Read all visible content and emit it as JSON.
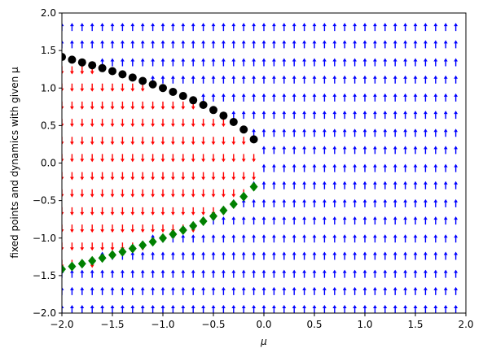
{
  "chart_data": {
    "type": "quiver",
    "xlabel": "μ",
    "ylabel": "fixed points and dynamics with given μ",
    "xlim": [
      -2,
      2
    ],
    "ylim": [
      -2,
      2
    ],
    "xticks": [
      {
        "value": -2,
        "label": "−2.0"
      },
      {
        "value": -1.5,
        "label": "−1.5"
      },
      {
        "value": -1,
        "label": "−1.0"
      },
      {
        "value": -0.5,
        "label": "−0.5"
      },
      {
        "value": 0,
        "label": "0.0"
      },
      {
        "value": 0.5,
        "label": "0.5"
      },
      {
        "value": 1,
        "label": "1.0"
      },
      {
        "value": 1.5,
        "label": "1.5"
      },
      {
        "value": 2,
        "label": "2.0"
      }
    ],
    "yticks": [
      {
        "value": -2,
        "label": "−2.0"
      },
      {
        "value": -1.5,
        "label": "−1.5"
      },
      {
        "value": -1,
        "label": "−1.0"
      },
      {
        "value": -0.5,
        "label": "−0.5"
      },
      {
        "value": 0,
        "label": "0.0"
      },
      {
        "value": 0.5,
        "label": "0.5"
      },
      {
        "value": 1,
        "label": "1.0"
      },
      {
        "value": 1.5,
        "label": "1.5"
      },
      {
        "value": 2,
        "label": "2.0"
      }
    ],
    "quiver": {
      "up_color": "#0000ff",
      "down_color": "#ff0000",
      "mu": [
        -2,
        -1.9,
        -1.8,
        -1.7,
        -1.6,
        -1.5,
        -1.4,
        -1.3,
        -1.2,
        -1.1,
        -1,
        -0.9,
        -0.8,
        -0.7,
        -0.6,
        -0.5,
        -0.4,
        -0.3,
        -0.2,
        -0.1,
        0,
        0.1,
        0.2,
        0.3,
        0.4,
        0.5,
        0.6,
        0.7,
        0.8,
        0.9,
        1,
        1.1,
        1.2,
        1.3,
        1.4,
        1.5,
        1.6,
        1.7,
        1.8,
        1.9
      ],
      "x": [
        -2,
        -1.76,
        -1.53,
        -1.29,
        -1.06,
        -0.82,
        -0.59,
        -0.35,
        -0.12,
        0.12,
        0.35,
        0.59,
        0.82,
        1.06,
        1.29,
        1.53,
        1.76,
        2
      ],
      "directions": [
        [
          1,
          1,
          1,
          1,
          1,
          1,
          1,
          1,
          1,
          1,
          1,
          1,
          1,
          1,
          1,
          1,
          1,
          1,
          1,
          1,
          1,
          1,
          1,
          1,
          1,
          1,
          1,
          1,
          1,
          1,
          1,
          1,
          1,
          1,
          1,
          1,
          1,
          1,
          1,
          1
        ],
        [
          1,
          1,
          1,
          1,
          1,
          1,
          1,
          1,
          1,
          1,
          1,
          1,
          1,
          1,
          1,
          1,
          1,
          1,
          1,
          1,
          1,
          1,
          1,
          1,
          1,
          1,
          1,
          1,
          1,
          1,
          1,
          1,
          1,
          1,
          1,
          1,
          1,
          1,
          1,
          1
        ],
        [
          1,
          1,
          1,
          1,
          1,
          1,
          1,
          1,
          1,
          1,
          1,
          1,
          1,
          1,
          1,
          1,
          1,
          1,
          1,
          1,
          1,
          1,
          1,
          1,
          1,
          1,
          1,
          1,
          1,
          1,
          1,
          1,
          1,
          1,
          1,
          1,
          1,
          1,
          1,
          1
        ],
        [
          -1,
          -1,
          -1,
          -1,
          1,
          1,
          1,
          1,
          1,
          1,
          1,
          1,
          1,
          1,
          1,
          1,
          1,
          1,
          1,
          1,
          1,
          1,
          1,
          1,
          1,
          1,
          1,
          1,
          1,
          1,
          1,
          1,
          1,
          1,
          1,
          1,
          1,
          1,
          1,
          1
        ],
        [
          -1,
          -1,
          -1,
          -1,
          -1,
          -1,
          -1,
          -1,
          -1,
          1,
          1,
          1,
          1,
          1,
          1,
          1,
          1,
          1,
          1,
          1,
          1,
          1,
          1,
          1,
          1,
          1,
          1,
          1,
          1,
          1,
          1,
          1,
          1,
          1,
          1,
          1,
          1,
          1,
          1,
          1
        ],
        [
          -1,
          -1,
          -1,
          -1,
          -1,
          -1,
          -1,
          -1,
          -1,
          -1,
          -1,
          -1,
          -1,
          -1,
          1,
          1,
          1,
          1,
          1,
          1,
          1,
          1,
          1,
          1,
          1,
          1,
          1,
          1,
          1,
          1,
          1,
          1,
          1,
          1,
          1,
          1,
          1,
          1,
          1,
          1
        ],
        [
          -1,
          -1,
          -1,
          -1,
          -1,
          -1,
          -1,
          -1,
          -1,
          -1,
          -1,
          -1,
          -1,
          -1,
          -1,
          -1,
          -1,
          1,
          1,
          1,
          1,
          1,
          1,
          1,
          1,
          1,
          1,
          1,
          1,
          1,
          1,
          1,
          1,
          1,
          1,
          1,
          1,
          1,
          1,
          1
        ],
        [
          -1,
          -1,
          -1,
          -1,
          -1,
          -1,
          -1,
          -1,
          -1,
          -1,
          -1,
          -1,
          -1,
          -1,
          -1,
          -1,
          -1,
          -1,
          -1,
          1,
          1,
          1,
          1,
          1,
          1,
          1,
          1,
          1,
          1,
          1,
          1,
          1,
          1,
          1,
          1,
          1,
          1,
          1,
          1,
          1
        ],
        [
          -1,
          -1,
          -1,
          -1,
          -1,
          -1,
          -1,
          -1,
          -1,
          -1,
          -1,
          -1,
          -1,
          -1,
          -1,
          -1,
          -1,
          -1,
          -1,
          -1,
          1,
          1,
          1,
          1,
          1,
          1,
          1,
          1,
          1,
          1,
          1,
          1,
          1,
          1,
          1,
          1,
          1,
          1,
          1,
          1
        ],
        [
          -1,
          -1,
          -1,
          -1,
          -1,
          -1,
          -1,
          -1,
          -1,
          -1,
          -1,
          -1,
          -1,
          -1,
          -1,
          -1,
          -1,
          -1,
          -1,
          -1,
          1,
          1,
          1,
          1,
          1,
          1,
          1,
          1,
          1,
          1,
          1,
          1,
          1,
          1,
          1,
          1,
          1,
          1,
          1,
          1
        ],
        [
          -1,
          -1,
          -1,
          -1,
          -1,
          -1,
          -1,
          -1,
          -1,
          -1,
          -1,
          -1,
          -1,
          -1,
          -1,
          -1,
          -1,
          -1,
          -1,
          1,
          1,
          1,
          1,
          1,
          1,
          1,
          1,
          1,
          1,
          1,
          1,
          1,
          1,
          1,
          1,
          1,
          1,
          1,
          1,
          1
        ],
        [
          -1,
          -1,
          -1,
          -1,
          -1,
          -1,
          -1,
          -1,
          -1,
          -1,
          -1,
          -1,
          -1,
          -1,
          -1,
          -1,
          -1,
          1,
          1,
          1,
          1,
          1,
          1,
          1,
          1,
          1,
          1,
          1,
          1,
          1,
          1,
          1,
          1,
          1,
          1,
          1,
          1,
          1,
          1,
          1
        ],
        [
          -1,
          -1,
          -1,
          -1,
          -1,
          -1,
          -1,
          -1,
          -1,
          -1,
          -1,
          -1,
          -1,
          -1,
          1,
          1,
          1,
          1,
          1,
          1,
          1,
          1,
          1,
          1,
          1,
          1,
          1,
          1,
          1,
          1,
          1,
          1,
          1,
          1,
          1,
          1,
          1,
          1,
          1,
          1
        ],
        [
          -1,
          -1,
          -1,
          -1,
          -1,
          -1,
          -1,
          -1,
          -1,
          1,
          1,
          1,
          1,
          1,
          1,
          1,
          1,
          1,
          1,
          1,
          1,
          1,
          1,
          1,
          1,
          1,
          1,
          1,
          1,
          1,
          1,
          1,
          1,
          1,
          1,
          1,
          1,
          1,
          1,
          1
        ],
        [
          -1,
          -1,
          -1,
          -1,
          1,
          1,
          1,
          1,
          1,
          1,
          1,
          1,
          1,
          1,
          1,
          1,
          1,
          1,
          1,
          1,
          1,
          1,
          1,
          1,
          1,
          1,
          1,
          1,
          1,
          1,
          1,
          1,
          1,
          1,
          1,
          1,
          1,
          1,
          1,
          1
        ],
        [
          1,
          1,
          1,
          1,
          1,
          1,
          1,
          1,
          1,
          1,
          1,
          1,
          1,
          1,
          1,
          1,
          1,
          1,
          1,
          1,
          1,
          1,
          1,
          1,
          1,
          1,
          1,
          1,
          1,
          1,
          1,
          1,
          1,
          1,
          1,
          1,
          1,
          1,
          1,
          1
        ],
        [
          1,
          1,
          1,
          1,
          1,
          1,
          1,
          1,
          1,
          1,
          1,
          1,
          1,
          1,
          1,
          1,
          1,
          1,
          1,
          1,
          1,
          1,
          1,
          1,
          1,
          1,
          1,
          1,
          1,
          1,
          1,
          1,
          1,
          1,
          1,
          1,
          1,
          1,
          1,
          1
        ],
        [
          1,
          1,
          1,
          1,
          1,
          1,
          1,
          1,
          1,
          1,
          1,
          1,
          1,
          1,
          1,
          1,
          1,
          1,
          1,
          1,
          1,
          1,
          1,
          1,
          1,
          1,
          1,
          1,
          1,
          1,
          1,
          1,
          1,
          1,
          1,
          1,
          1,
          1,
          1,
          1
        ]
      ]
    },
    "x": [
      -2,
      -1.9,
      -1.8,
      -1.7,
      -1.6,
      -1.5,
      -1.4,
      -1.3,
      -1.2,
      -1.1,
      -1,
      -0.9,
      -0.8,
      -0.7,
      -0.6,
      -0.5,
      -0.4,
      -0.3,
      -0.2,
      -0.1
    ],
    "series": [
      {
        "color": "#000000",
        "marker": "circle",
        "values": [
          1.414,
          1.378,
          1.342,
          1.304,
          1.265,
          1.225,
          1.183,
          1.14,
          1.095,
          1.049,
          1,
          0.949,
          0.894,
          0.837,
          0.775,
          0.707,
          0.632,
          0.548,
          0.447,
          0.316
        ]
      },
      {
        "color": "#008000",
        "marker": "diamond",
        "values": [
          -1.414,
          -1.378,
          -1.342,
          -1.304,
          -1.265,
          -1.225,
          -1.183,
          -1.14,
          -1.095,
          -1.049,
          -1,
          -0.949,
          -0.894,
          -0.837,
          -0.775,
          -0.707,
          -0.632,
          -0.548,
          -0.447,
          -0.316
        ]
      }
    ]
  }
}
